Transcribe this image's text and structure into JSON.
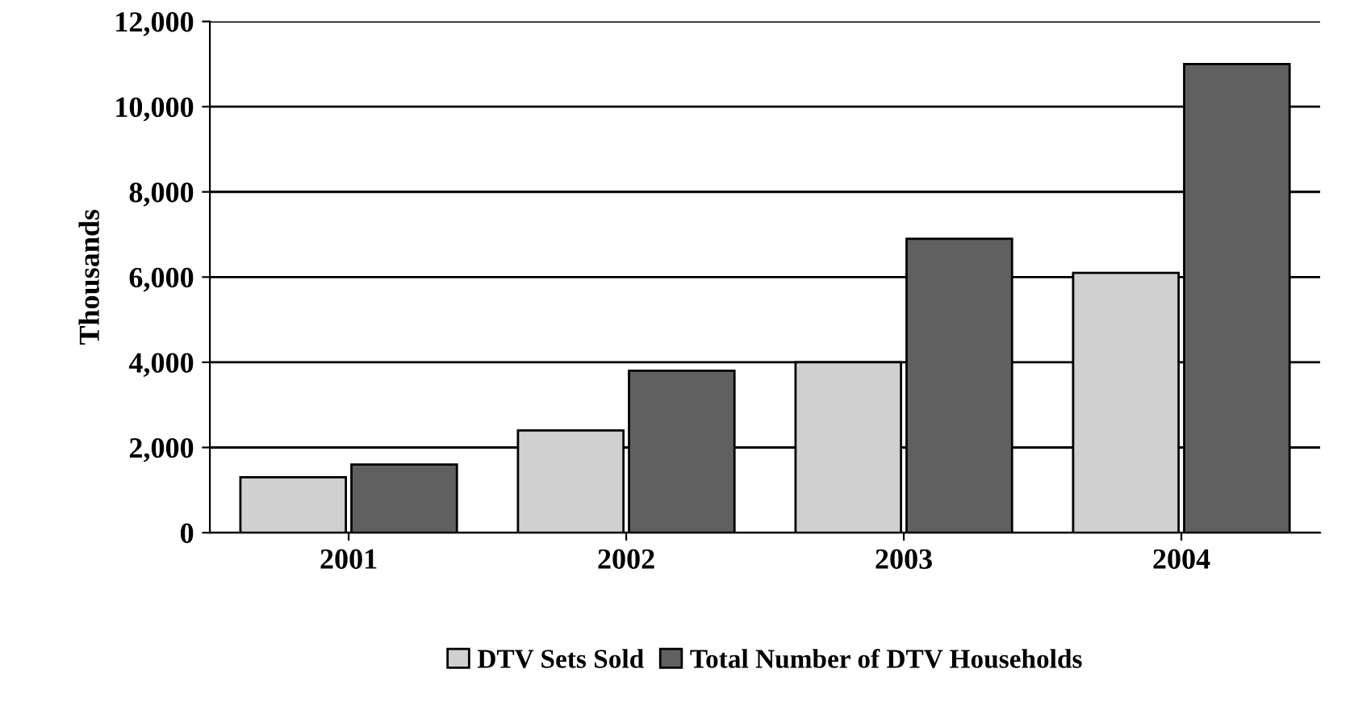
{
  "chart_data": {
    "type": "bar",
    "ylabel": "Thousands",
    "categories": [
      "2001",
      "2002",
      "2003",
      "2004"
    ],
    "series": [
      {
        "name": "DTV Sets Sold",
        "color": "#d0d0d0",
        "values": [
          1300,
          2400,
          4000,
          6100
        ]
      },
      {
        "name": "Total Number of DTV Households",
        "color": "#606060",
        "values": [
          1600,
          3800,
          6900,
          11000
        ]
      }
    ],
    "ylim": [
      0,
      12000
    ],
    "yticks": [
      {
        "value": 0,
        "label": "0"
      },
      {
        "value": 2000,
        "label": "2,000"
      },
      {
        "value": 4000,
        "label": "4,000"
      },
      {
        "value": 6000,
        "label": "6,000"
      },
      {
        "value": 8000,
        "label": "8,000"
      },
      {
        "value": 10000,
        "label": "10,000"
      },
      {
        "value": 12000,
        "label": "12,000"
      }
    ],
    "grid": "y",
    "legend": "bottom"
  }
}
